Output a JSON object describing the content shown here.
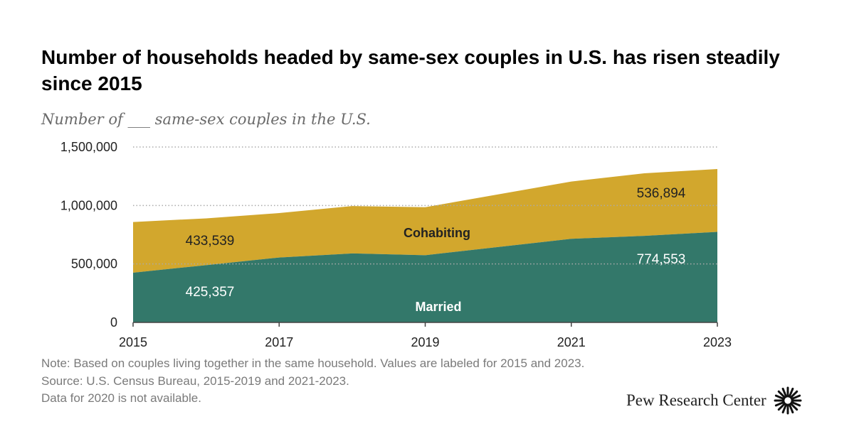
{
  "title": "Number of households headed by same-sex couples in U.S. has risen steadily since 2015",
  "subtitle": "Number of ___ same-sex couples in the U.S.",
  "notes": [
    "Note: Based on couples living together in the same household. Values are labeled for 2015 and 2023.",
    "Source: U.S. Census Bureau, 2015-2019 and 2021-2023.",
    "Data for 2020 is not available."
  ],
  "brand": {
    "name": "Pew Research Center",
    "logo_icon": "pew-sunburst-icon"
  },
  "colors": {
    "married": "#33786a",
    "cohabiting": "#d2a72d",
    "gridline": "#aaaaaa"
  },
  "chart_data": {
    "type": "area",
    "stacked": true,
    "x": [
      2015,
      2016,
      2017,
      2018,
      2019,
      2021,
      2022,
      2023
    ],
    "xticks": [
      "2015",
      "2017",
      "2019",
      "2021",
      "2023"
    ],
    "xlim": [
      2015,
      2023
    ],
    "ylim": [
      0,
      1500000
    ],
    "yticks": [
      "0",
      "500,000",
      "1,000,000",
      "1,500,000"
    ],
    "grid": true,
    "series": [
      {
        "name": "Married",
        "values": [
          425357,
          490000,
          555000,
          590000,
          575000,
          715000,
          740000,
          774553
        ],
        "label_start": "425,357",
        "label_end": "774,553"
      },
      {
        "name": "Cohabiting",
        "values": [
          433539,
          400000,
          380000,
          405000,
          410000,
          490000,
          535000,
          536894
        ],
        "label_start": "433,539",
        "label_end": "536,894"
      }
    ]
  }
}
